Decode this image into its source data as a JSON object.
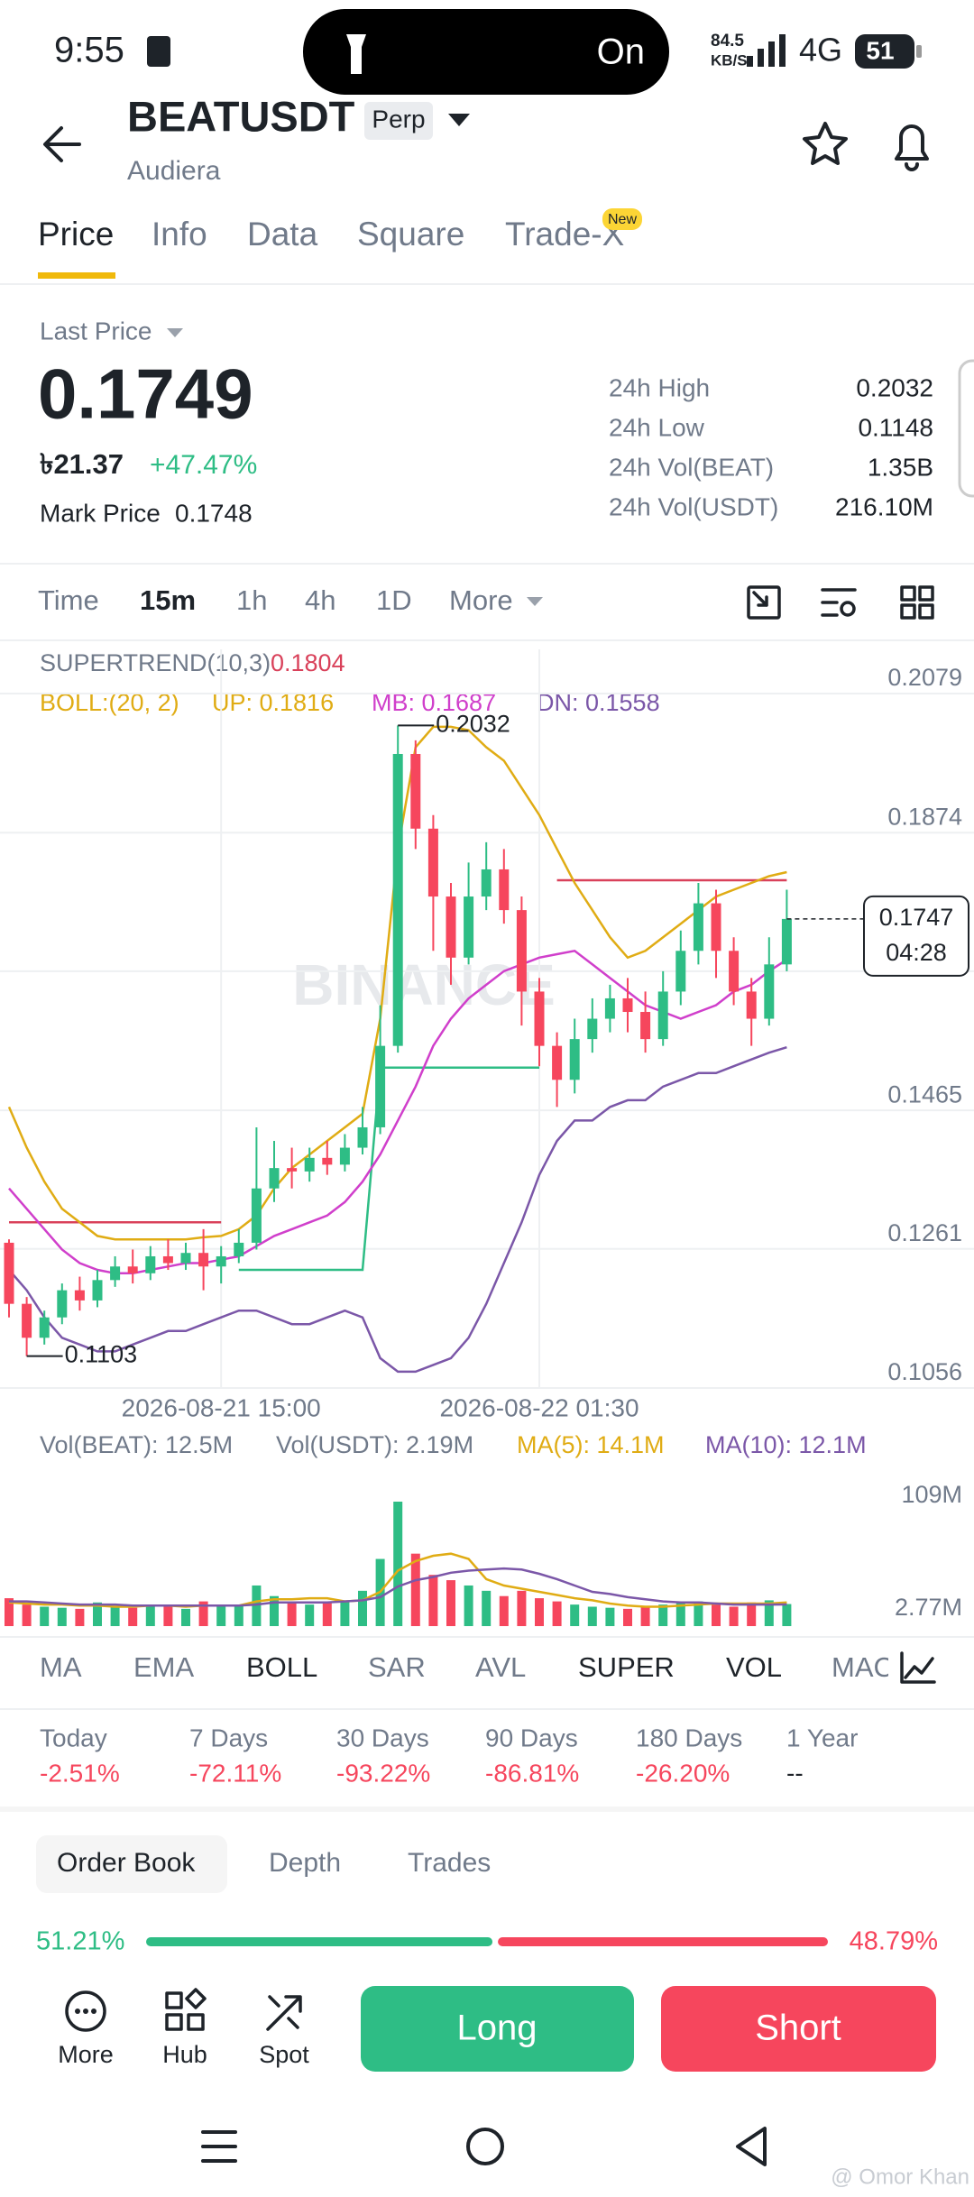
{
  "status_bar": {
    "time": "9:55",
    "island_text": "On",
    "net_speed": "84.5",
    "net_unit": "KB/S",
    "network": "4G",
    "battery": "51"
  },
  "header": {
    "symbol": "BEATUSDT",
    "badge": "Perp",
    "name": "Audiera"
  },
  "tabs": [
    "Price",
    "Info",
    "Data",
    "Square",
    "Trade-X"
  ],
  "new_badge": "New",
  "price": {
    "label": "Last Price",
    "last": "0.1749",
    "local": "৳21.37",
    "change": "+47.47%",
    "mark_label": "Mark Price",
    "mark": "0.1748"
  },
  "stats": [
    {
      "label": "24h High",
      "value": "0.2032"
    },
    {
      "label": "24h Low",
      "value": "0.1148"
    },
    {
      "label": "24h Vol(BEAT)",
      "value": "1.35B"
    },
    {
      "label": "24h Vol(USDT)",
      "value": "216.10M"
    }
  ],
  "timeframes": [
    "Time",
    "15m",
    "1h",
    "4h",
    "1D",
    "More"
  ],
  "chart": {
    "type": "candlestick",
    "supertrend_label": "SUPERTREND(10,3)",
    "supertrend_value": "0.1804",
    "boll_label": "BOLL:(20, 2)",
    "boll_up": "UP: 0.1816",
    "boll_mb": "MB: 0.1687",
    "boll_dn": "DN: 0.1558",
    "watermark": "BINANCE",
    "max_label": "0.2032",
    "min_label": "0.1103",
    "ylim": [
      0.1056,
      0.2079
    ],
    "yticks": [
      0.2079,
      0.1874,
      {
        "value": 0.167,
        "label": "0.1670"
      },
      0.1465,
      0.1261,
      0.1056
    ],
    "categories": [
      null,
      null,
      null,
      null,
      null,
      null,
      null,
      null,
      null,
      null,
      null,
      null,
      "2026-08-21 15:00",
      null,
      null,
      null,
      null,
      null,
      null,
      null,
      null,
      null,
      null,
      null,
      null,
      null,
      null,
      null,
      null,
      null,
      "2026-08-22 01:30",
      null,
      null,
      null,
      null,
      null,
      null,
      null,
      null,
      null,
      null,
      null,
      null,
      null,
      null
    ],
    "open": [
      0.127,
      0.118,
      0.113,
      0.116,
      0.12,
      0.1185,
      0.1215,
      0.1235,
      0.1225,
      0.125,
      0.124,
      0.1255,
      0.1235,
      0.125,
      0.127,
      0.135,
      0.138,
      0.1375,
      0.1395,
      0.1385,
      0.141,
      0.144,
      0.156,
      0.199,
      0.188,
      0.178,
      0.169,
      0.178,
      0.182,
      0.176,
      0.164,
      0.156,
      0.151,
      0.157,
      0.16,
      0.163,
      0.161,
      0.157,
      0.164,
      0.17,
      0.177,
      0.17,
      0.164,
      0.16,
      0.168
    ],
    "high": [
      0.1275,
      0.119,
      0.117,
      0.121,
      0.122,
      0.123,
      0.125,
      0.126,
      0.1265,
      0.1275,
      0.127,
      0.129,
      0.1265,
      0.129,
      0.144,
      0.142,
      0.141,
      0.141,
      0.142,
      0.143,
      0.147,
      0.162,
      0.2032,
      0.201,
      0.19,
      0.18,
      0.183,
      0.186,
      0.185,
      0.178,
      0.166,
      0.158,
      0.16,
      0.163,
      0.165,
      0.166,
      0.164,
      0.167,
      0.173,
      0.18,
      0.179,
      0.172,
      0.166,
      0.172,
      0.179
    ],
    "low": [
      0.116,
      0.1103,
      0.112,
      0.115,
      0.117,
      0.1175,
      0.1205,
      0.121,
      0.1215,
      0.123,
      0.123,
      0.12,
      0.121,
      0.124,
      0.126,
      0.133,
      0.135,
      0.136,
      0.137,
      0.1375,
      0.14,
      0.143,
      0.155,
      0.185,
      0.17,
      0.165,
      0.168,
      0.176,
      0.174,
      0.159,
      0.153,
      0.147,
      0.149,
      0.155,
      0.158,
      0.158,
      0.155,
      0.156,
      0.162,
      0.168,
      0.166,
      0.162,
      0.156,
      0.159,
      0.167
    ],
    "close": [
      0.118,
      0.113,
      0.116,
      0.12,
      0.1185,
      0.1215,
      0.1235,
      0.1225,
      0.125,
      0.124,
      0.1255,
      0.1235,
      0.125,
      0.127,
      0.135,
      0.138,
      0.1375,
      0.1395,
      0.1385,
      0.141,
      0.144,
      0.156,
      0.199,
      0.188,
      0.178,
      0.169,
      0.178,
      0.182,
      0.176,
      0.164,
      0.156,
      0.151,
      0.157,
      0.16,
      0.163,
      0.161,
      0.157,
      0.164,
      0.17,
      0.177,
      0.17,
      0.164,
      0.16,
      0.168,
      0.1747
    ],
    "boll": [
      {
        "color": "#E0AC14",
        "values": [
          0.147,
          0.141,
          0.136,
          0.132,
          0.13,
          0.128,
          0.1275,
          0.1275,
          0.1275,
          0.1275,
          0.1275,
          0.1278,
          0.128,
          0.129,
          0.131,
          0.135,
          0.138,
          0.14,
          0.142,
          0.144,
          0.146,
          0.16,
          0.185,
          0.2,
          0.203,
          0.203,
          0.2025,
          0.2,
          0.198,
          0.194,
          0.19,
          0.185,
          0.18,
          0.176,
          0.172,
          0.169,
          0.17,
          0.172,
          0.174,
          0.176,
          0.178,
          0.179,
          0.18,
          0.181,
          0.1816
        ]
      },
      {
        "color": "#D03FCB",
        "values": [
          0.135,
          0.132,
          0.129,
          0.126,
          0.124,
          0.123,
          0.1225,
          0.1225,
          0.123,
          0.1235,
          0.124,
          0.124,
          0.1245,
          0.125,
          0.1265,
          0.128,
          0.129,
          0.13,
          0.131,
          0.133,
          0.136,
          0.14,
          0.145,
          0.15,
          0.156,
          0.16,
          0.163,
          0.165,
          0.167,
          0.168,
          0.169,
          0.1695,
          0.17,
          0.168,
          0.166,
          0.164,
          0.162,
          0.161,
          0.16,
          0.161,
          0.162,
          0.164,
          0.165,
          0.167,
          0.1687
        ]
      },
      {
        "color": "#7B57A8",
        "values": [
          0.123,
          0.12,
          0.116,
          0.113,
          0.112,
          0.111,
          0.111,
          0.112,
          0.113,
          0.114,
          0.114,
          0.115,
          0.116,
          0.117,
          0.117,
          0.116,
          0.115,
          0.115,
          0.116,
          0.117,
          0.116,
          0.11,
          0.108,
          0.108,
          0.109,
          0.11,
          0.113,
          0.118,
          0.124,
          0.13,
          0.137,
          0.142,
          0.145,
          0.145,
          0.147,
          0.148,
          0.148,
          0.15,
          0.151,
          0.152,
          0.152,
          0.153,
          0.154,
          0.155,
          0.1558
        ]
      }
    ],
    "supertrend": [
      {
        "color": "#D9415A",
        "values": [
          0.13,
          0.13,
          0.13,
          0.13,
          0.13,
          0.13,
          0.13,
          0.13,
          0.13,
          0.13,
          0.13,
          0.13,
          0.13,
          null,
          null,
          null,
          null,
          null,
          null,
          null,
          null,
          null,
          null,
          null,
          null,
          null,
          null,
          null,
          null,
          null,
          null,
          0.1804,
          0.1804,
          0.1804,
          0.1804,
          0.1804,
          0.1804,
          0.1804,
          0.1804,
          0.1804,
          0.1804,
          0.1804,
          0.1804,
          0.1804,
          0.1804
        ]
      },
      {
        "color": "#2EBD85",
        "values": [
          null,
          null,
          null,
          null,
          null,
          null,
          null,
          null,
          null,
          null,
          null,
          null,
          null,
          0.123,
          0.123,
          0.123,
          0.123,
          0.123,
          0.123,
          0.123,
          0.123,
          0.1528,
          0.1528,
          0.1528,
          0.1528,
          0.1528,
          0.1528,
          0.1528,
          0.1528,
          0.1528,
          0.1528,
          null,
          null,
          null,
          null,
          null,
          null,
          null,
          null,
          null,
          null,
          null,
          null,
          null,
          null
        ]
      }
    ],
    "last_price": {
      "value": 0.1747,
      "label": "0.1747",
      "countdown": "04:28"
    },
    "volume": {
      "labels": [
        {
          "text": "Vol(BEAT): 12.5M",
          "color": "#707A8A"
        },
        {
          "text": "Vol(USDT): 2.19M",
          "color": "#707A8A"
        },
        {
          "text": "MA(5): 14.1M",
          "color": "#E0AC14"
        },
        {
          "text": "MA(10): 12.1M",
          "color": "#7B57A8"
        }
      ],
      "ylim": [
        2.77,
        109
      ],
      "yticks": [
        {
          "value": 109,
          "label": "109M"
        },
        {
          "value": 2.77,
          "label": "2.77M"
        }
      ],
      "values": [
        18,
        12,
        10,
        9,
        8,
        14,
        10,
        9,
        12,
        11,
        8,
        15,
        10,
        12,
        30,
        20,
        15,
        12,
        14,
        16,
        25,
        55,
        109,
        60,
        40,
        35,
        30,
        25,
        20,
        25,
        18,
        15,
        12,
        10,
        9,
        8,
        10,
        12,
        14,
        15,
        12,
        10,
        14,
        16,
        12.5
      ],
      "ma5": [
        14,
        13,
        12,
        12,
        11,
        11,
        10,
        10,
        11,
        11,
        10,
        11,
        11,
        11,
        15,
        17,
        17,
        18,
        18,
        15,
        16,
        24,
        44,
        53,
        58,
        60,
        55,
        36,
        30,
        27,
        24,
        21,
        18,
        16,
        13,
        11,
        10,
        10,
        11,
        12,
        13,
        13,
        13,
        13,
        14.1
      ],
      "ma10": [
        15,
        15,
        14,
        13,
        12,
        12,
        12,
        11,
        11,
        11,
        11,
        11,
        11,
        11,
        12,
        14,
        14,
        14,
        14,
        15,
        16,
        19,
        29,
        35,
        38,
        42,
        44,
        45,
        46,
        45,
        41,
        36,
        30,
        24,
        22,
        19,
        17,
        15,
        14,
        14,
        13,
        12,
        12,
        12,
        12.1
      ]
    }
  },
  "indicators": [
    "MA",
    "EMA",
    "BOLL",
    "SAR",
    "AVL",
    "SUPER",
    "VOL",
    "MAC"
  ],
  "performance": [
    {
      "label": "Today",
      "value": "-2.51%"
    },
    {
      "label": "7 Days",
      "value": "-72.11%"
    },
    {
      "label": "30 Days",
      "value": "-93.22%"
    },
    {
      "label": "90 Days",
      "value": "-86.81%"
    },
    {
      "label": "180 Days",
      "value": "-26.20%"
    },
    {
      "label": "1 Year",
      "value": "--"
    }
  ],
  "book_tabs": [
    "Order Book",
    "Depth",
    "Trades"
  ],
  "ratio": {
    "values": [
      51.21,
      48.79
    ],
    "value_labels": [
      "51.21%",
      "48.79%"
    ]
  },
  "actions": {
    "more": "More",
    "hub": "Hub",
    "spot": "Spot",
    "long": "Long",
    "short": "Short"
  },
  "watermark": "@ Omor Khan"
}
